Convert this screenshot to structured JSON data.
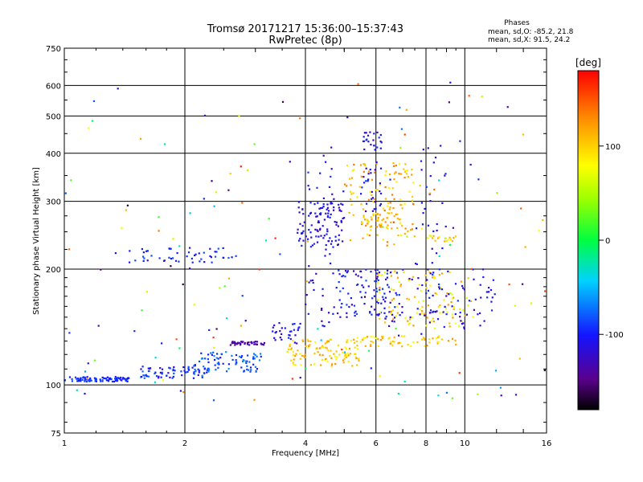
{
  "header": {
    "title": "Tromsø 20171217 15:36:00–15:37:43",
    "subtitle": "RwPretec (8p)"
  },
  "stats": {
    "heading": "Phases",
    "line_o": "mean, sd,O: -85.2, 21.8",
    "line_x": "mean, sd,X:  91.5, 24.2"
  },
  "colorbar": {
    "unit": "[deg]",
    "min": -180,
    "max": 180,
    "ticks": [
      100,
      0,
      -100
    ],
    "tick_labels": [
      "100",
      "0",
      "-100"
    ]
  },
  "chart_data": {
    "type": "scatter",
    "title": "Tromsø 20171217 15:36:00–15:37:43",
    "subtitle": "RwPretec (8p)",
    "xlabel": "Frequency [MHz]",
    "ylabel": "Stationary phase Virtual Height [km]",
    "x_scale": "log",
    "y_scale": "log",
    "xlim": [
      1,
      16
    ],
    "ylim": [
      75,
      750
    ],
    "x_ticks": [
      1,
      2,
      4,
      6,
      8,
      10,
      16
    ],
    "x_tick_labels": [
      "1",
      "2",
      "4",
      "6",
      "8",
      "10",
      "16"
    ],
    "y_ticks": [
      75,
      100,
      200,
      300,
      400,
      500,
      600,
      750
    ],
    "y_tick_labels": [
      "75",
      "100",
      "200",
      "300",
      "400",
      "500",
      "600",
      "750"
    ],
    "grid": true,
    "color_by": "phase [deg]",
    "clusters": [
      {
        "x_range": [
          1.0,
          1.45
        ],
        "h_range": [
          102,
          105
        ],
        "phase_range": [
          -110,
          -80
        ],
        "count": 90
      },
      {
        "x_range": [
          1.55,
          2.3
        ],
        "h_range": [
          104,
          112
        ],
        "phase_range": [
          -120,
          -70
        ],
        "count": 70
      },
      {
        "x_range": [
          2.1,
          3.1
        ],
        "h_range": [
          108,
          122
        ],
        "phase_range": [
          -110,
          -60
        ],
        "count": 80
      },
      {
        "x_range": [
          2.6,
          3.2
        ],
        "h_range": [
          127,
          130
        ],
        "phase_range": [
          -150,
          -120
        ],
        "count": 40
      },
      {
        "x_range": [
          3.3,
          3.9
        ],
        "h_range": [
          128,
          145
        ],
        "phase_range": [
          -130,
          -90
        ],
        "count": 30
      },
      {
        "x_range": [
          3.6,
          5.5
        ],
        "h_range": [
          112,
          132
        ],
        "phase_range": [
          80,
          130
        ],
        "count": 110
      },
      {
        "x_range": [
          5.2,
          9.5
        ],
        "h_range": [
          126,
          134
        ],
        "phase_range": [
          70,
          130
        ],
        "count": 60
      },
      {
        "x_range": [
          1.45,
          2.7
        ],
        "h_range": [
          208,
          228
        ],
        "phase_range": [
          -110,
          -80
        ],
        "count": 50
      },
      {
        "x_range": [
          3.8,
          5.0
        ],
        "h_range": [
          230,
          300
        ],
        "phase_range": [
          -130,
          -90
        ],
        "count": 90
      },
      {
        "x_range": [
          4.0,
          4.8
        ],
        "h_range": [
          140,
          420
        ],
        "phase_range": [
          -130,
          -90
        ],
        "count": 60
      },
      {
        "x_range": [
          4.8,
          6.5
        ],
        "h_range": [
          150,
          200
        ],
        "phase_range": [
          -130,
          -80
        ],
        "count": 80
      },
      {
        "x_range": [
          5.0,
          7.5
        ],
        "h_range": [
          230,
          380
        ],
        "phase_range": [
          80,
          140
        ],
        "count": 120
      },
      {
        "x_range": [
          5.5,
          6.2
        ],
        "h_range": [
          280,
          460
        ],
        "phase_range": [
          -130,
          -90
        ],
        "count": 50
      },
      {
        "x_range": [
          5.5,
          7.0
        ],
        "h_range": [
          255,
          280
        ],
        "phase_range": [
          90,
          130
        ],
        "count": 40
      },
      {
        "x_range": [
          6.0,
          10.5
        ],
        "h_range": [
          140,
          200
        ],
        "phase_range": [
          60,
          130
        ],
        "count": 110
      },
      {
        "x_range": [
          6.0,
          12.0
        ],
        "h_range": [
          140,
          200
        ],
        "phase_range": [
          -130,
          -90
        ],
        "count": 90
      },
      {
        "x_range": [
          8.0,
          9.5
        ],
        "h_range": [
          236,
          245
        ],
        "phase_range": [
          60,
          120
        ],
        "count": 20
      },
      {
        "x_range": [
          7.5,
          9.0
        ],
        "h_range": [
          150,
          420
        ],
        "phase_range": [
          -130,
          -90
        ],
        "count": 40
      },
      {
        "x_range": [
          1.0,
          16.0
        ],
        "h_range": [
          90,
          620
        ],
        "phase_range": [
          -170,
          170
        ],
        "count": 160
      }
    ]
  }
}
